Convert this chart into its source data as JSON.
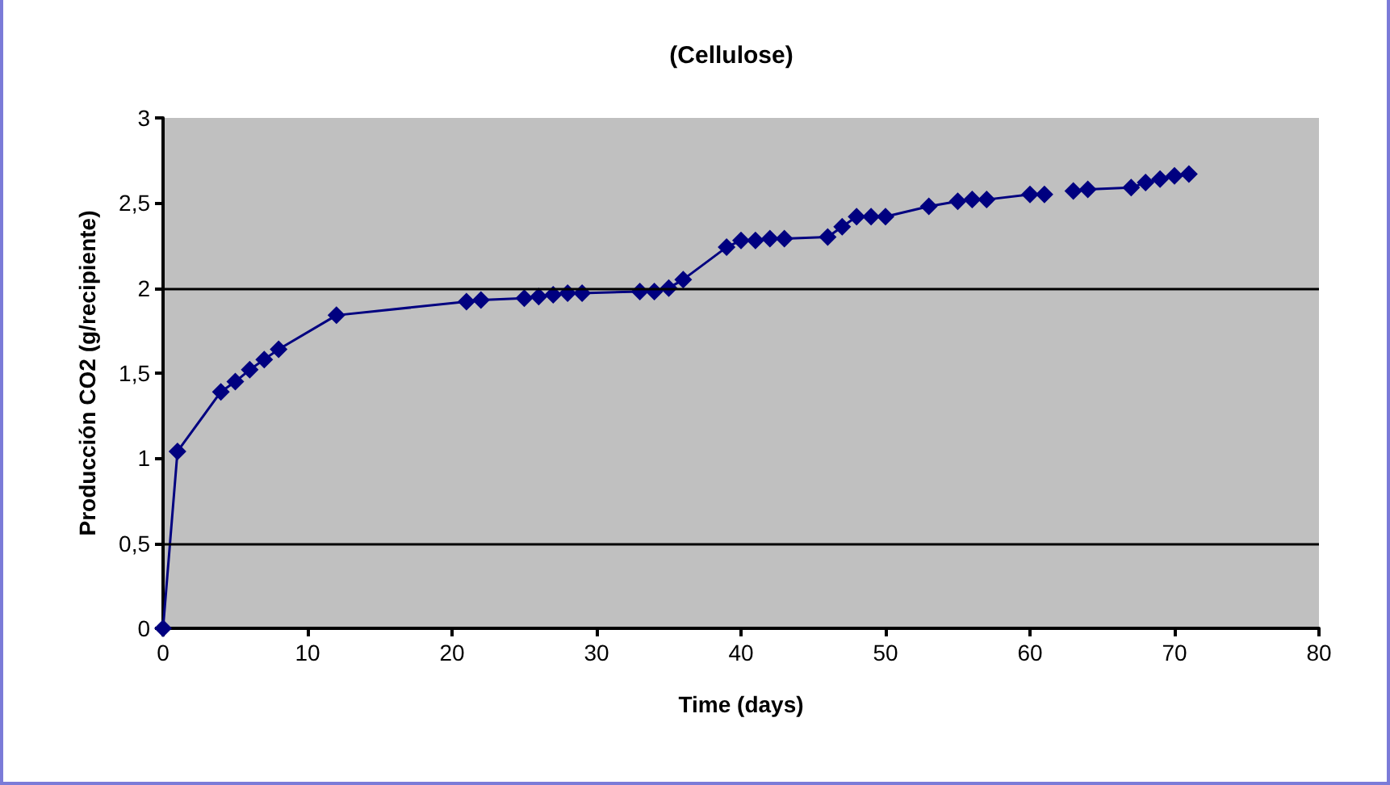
{
  "chart_data": {
    "type": "line",
    "title": "(Cellulose)",
    "xlabel": "Time (days)",
    "ylabel": "Producción CO2 (g/recipiente)",
    "x": [
      0,
      1,
      4,
      5,
      6,
      7,
      8,
      12,
      21,
      22,
      25,
      26,
      27,
      28,
      29,
      33,
      34,
      35,
      36,
      39,
      40,
      41,
      42,
      43,
      46,
      47,
      48,
      49,
      50,
      53,
      55,
      56,
      57,
      60,
      61,
      62,
      63,
      64,
      67,
      68,
      69,
      70,
      71
    ],
    "series": [
      {
        "color": "#000080",
        "values": [
          0,
          1.04,
          1.39,
          1.45,
          1.52,
          1.58,
          1.64,
          1.84,
          1.92,
          1.93,
          1.94,
          1.95,
          1.96,
          1.97,
          1.97,
          1.98,
          1.98,
          2.0,
          2.05,
          2.24,
          2.28,
          2.28,
          2.29,
          2.29,
          2.3,
          2.36,
          2.42,
          2.42,
          2.42,
          2.48,
          2.51,
          2.52,
          2.52,
          2.55,
          2.55,
          null,
          2.57,
          2.58,
          2.59,
          2.62,
          2.64,
          2.66,
          2.67
        ]
      }
    ],
    "xlim": [
      0,
      80
    ],
    "xticks": [
      0,
      10,
      20,
      30,
      40,
      50,
      60,
      70,
      80
    ],
    "ylim": [
      0,
      3
    ],
    "yticks": [
      {
        "value": 0,
        "label": "0"
      },
      {
        "value": 0.5,
        "label": "0,5"
      },
      {
        "value": 1,
        "label": "1"
      },
      {
        "value": 1.5,
        "label": "1,5"
      },
      {
        "value": 2,
        "label": "2"
      },
      {
        "value": 2.5,
        "label": "2,5"
      },
      {
        "value": 3,
        "label": "3"
      }
    ],
    "ref_lines": [
      {
        "axis": "y",
        "value": 0.5,
        "color": "#000000"
      },
      {
        "axis": "y",
        "value": 2,
        "color": "#000000"
      }
    ],
    "grid": false,
    "marker": "diamond",
    "line_style": "solid"
  }
}
